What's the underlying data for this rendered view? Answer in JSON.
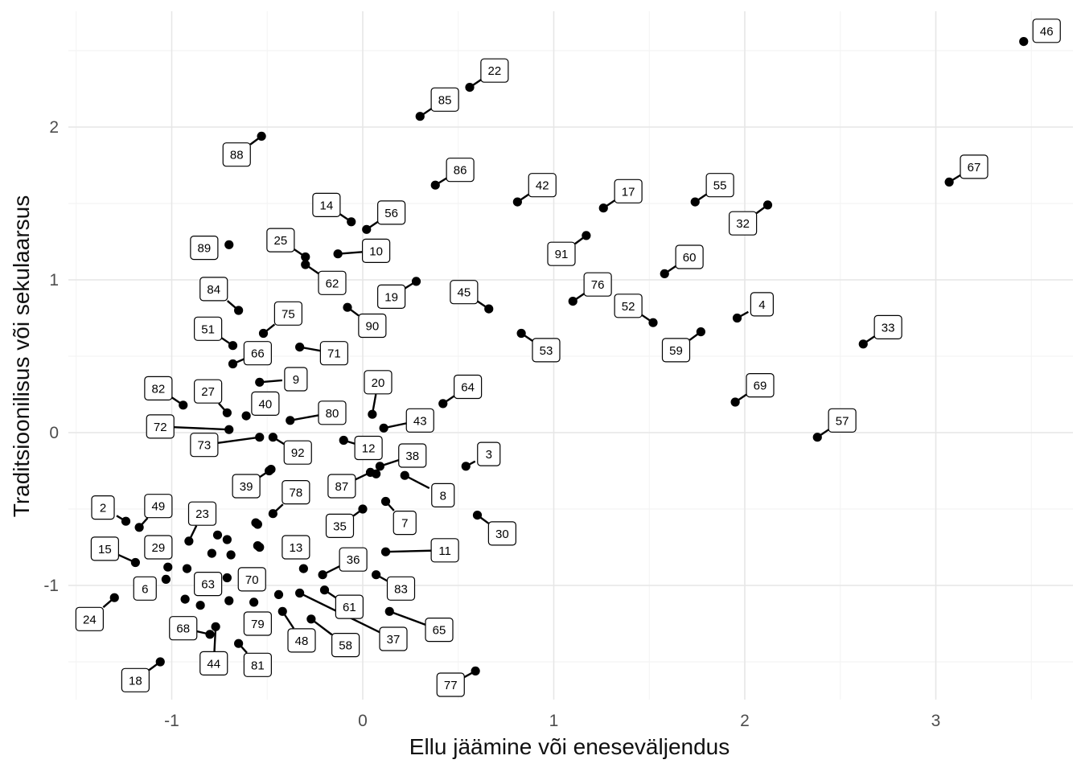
{
  "chart_data": {
    "type": "scatter",
    "title": "",
    "xlabel": "Ellu jäämine või eneseväljendus",
    "ylabel": "Traditsioonilisus või sekulaarsus",
    "xlim": [
      -1.5,
      3.7
    ],
    "ylim": [
      -1.75,
      2.7
    ],
    "xticks": [
      -1,
      0,
      1,
      2,
      3
    ],
    "yticks": [
      -1,
      0,
      1,
      2
    ],
    "grid": true,
    "points": [
      {
        "label": "46",
        "x": 3.46,
        "y": 2.56,
        "lx": 3.58,
        "ly": 2.63
      },
      {
        "label": "22",
        "x": 0.56,
        "y": 2.26,
        "lx": 0.69,
        "ly": 2.37
      },
      {
        "label": "85",
        "x": 0.3,
        "y": 2.07,
        "lx": 0.43,
        "ly": 2.18
      },
      {
        "label": "88",
        "x": -0.53,
        "y": 1.94,
        "lx": -0.66,
        "ly": 1.82
      },
      {
        "label": "67",
        "x": 3.07,
        "y": 1.64,
        "lx": 3.2,
        "ly": 1.74
      },
      {
        "label": "86",
        "x": 0.38,
        "y": 1.62,
        "lx": 0.51,
        "ly": 1.72
      },
      {
        "label": "42",
        "x": 0.81,
        "y": 1.51,
        "lx": 0.94,
        "ly": 1.62
      },
      {
        "label": "17",
        "x": 1.26,
        "y": 1.47,
        "lx": 1.39,
        "ly": 1.58
      },
      {
        "label": "55",
        "x": 1.74,
        "y": 1.51,
        "lx": 1.87,
        "ly": 1.62
      },
      {
        "label": "32",
        "x": 2.12,
        "y": 1.49,
        "lx": 1.99,
        "ly": 1.37
      },
      {
        "label": "14",
        "x": -0.06,
        "y": 1.38,
        "lx": -0.19,
        "ly": 1.49
      },
      {
        "label": "56",
        "x": 0.02,
        "y": 1.33,
        "lx": 0.15,
        "ly": 1.44
      },
      {
        "label": "91",
        "x": 1.17,
        "y": 1.29,
        "lx": 1.04,
        "ly": 1.17
      },
      {
        "label": "89",
        "x": -0.7,
        "y": 1.23,
        "lx": -0.83,
        "ly": 1.21
      },
      {
        "label": "25",
        "x": -0.3,
        "y": 1.15,
        "lx": -0.43,
        "ly": 1.26
      },
      {
        "label": "10",
        "x": -0.13,
        "y": 1.17,
        "lx": 0.07,
        "ly": 1.19
      },
      {
        "label": "62",
        "x": -0.3,
        "y": 1.1,
        "lx": -0.16,
        "ly": 0.98
      },
      {
        "label": "60",
        "x": 1.58,
        "y": 1.04,
        "lx": 1.71,
        "ly": 1.15
      },
      {
        "label": "76",
        "x": 1.1,
        "y": 0.86,
        "lx": 1.23,
        "ly": 0.97
      },
      {
        "label": "84",
        "x": -0.65,
        "y": 0.8,
        "lx": -0.78,
        "ly": 0.94
      },
      {
        "label": "19",
        "x": 0.28,
        "y": 0.99,
        "lx": 0.15,
        "ly": 0.89
      },
      {
        "label": "45",
        "x": 0.66,
        "y": 0.81,
        "lx": 0.53,
        "ly": 0.92
      },
      {
        "label": "52",
        "x": 1.52,
        "y": 0.72,
        "lx": 1.39,
        "ly": 0.83
      },
      {
        "label": "4",
        "x": 1.96,
        "y": 0.75,
        "lx": 2.09,
        "ly": 0.84
      },
      {
        "label": "75",
        "x": -0.52,
        "y": 0.65,
        "lx": -0.39,
        "ly": 0.78
      },
      {
        "label": "90",
        "x": -0.08,
        "y": 0.82,
        "lx": 0.05,
        "ly": 0.7
      },
      {
        "label": "51",
        "x": -0.68,
        "y": 0.57,
        "lx": -0.81,
        "ly": 0.68
      },
      {
        "label": "33",
        "x": 2.62,
        "y": 0.58,
        "lx": 2.75,
        "ly": 0.69
      },
      {
        "label": "53",
        "x": 0.83,
        "y": 0.65,
        "lx": 0.96,
        "ly": 0.54
      },
      {
        "label": "59",
        "x": 1.77,
        "y": 0.66,
        "lx": 1.64,
        "ly": 0.54
      },
      {
        "label": "66",
        "x": -0.68,
        "y": 0.45,
        "lx": -0.55,
        "ly": 0.52
      },
      {
        "label": "71",
        "x": -0.33,
        "y": 0.56,
        "lx": -0.15,
        "ly": 0.52
      },
      {
        "label": "9",
        "x": -0.54,
        "y": 0.33,
        "lx": -0.35,
        "ly": 0.35
      },
      {
        "label": "20",
        "x": 0.05,
        "y": 0.12,
        "lx": 0.08,
        "ly": 0.33
      },
      {
        "label": "64",
        "x": 0.42,
        "y": 0.19,
        "lx": 0.55,
        "ly": 0.3
      },
      {
        "label": "69",
        "x": 1.95,
        "y": 0.2,
        "lx": 2.08,
        "ly": 0.31
      },
      {
        "label": "82",
        "x": -0.94,
        "y": 0.18,
        "lx": -1.07,
        "ly": 0.29
      },
      {
        "label": "27",
        "x": -0.71,
        "y": 0.13,
        "lx": -0.81,
        "ly": 0.27
      },
      {
        "label": "40",
        "x": -0.61,
        "y": 0.11,
        "lx": -0.51,
        "ly": 0.19
      },
      {
        "label": "80",
        "x": -0.38,
        "y": 0.08,
        "lx": -0.16,
        "ly": 0.13
      },
      {
        "label": "43",
        "x": 0.11,
        "y": 0.03,
        "lx": 0.3,
        "ly": 0.08
      },
      {
        "label": "72",
        "x": -0.7,
        "y": 0.02,
        "lx": -1.06,
        "ly": 0.04
      },
      {
        "label": "57",
        "x": 2.38,
        "y": -0.03,
        "lx": 2.51,
        "ly": 0.08
      },
      {
        "label": "73",
        "x": -0.54,
        "y": -0.03,
        "lx": -0.83,
        "ly": -0.08
      },
      {
        "label": "92",
        "x": -0.47,
        "y": -0.03,
        "lx": -0.34,
        "ly": -0.13
      },
      {
        "label": "12",
        "x": -0.1,
        "y": -0.05,
        "lx": 0.03,
        "ly": -0.1
      },
      {
        "label": "3",
        "x": 0.54,
        "y": -0.22,
        "lx": 0.66,
        "ly": -0.14
      },
      {
        "label": "38",
        "x": 0.09,
        "y": -0.22,
        "lx": 0.26,
        "ly": -0.15
      },
      {
        "label": "87",
        "x": 0.04,
        "y": -0.26,
        "lx": -0.11,
        "ly": -0.35
      },
      {
        "label": "39",
        "x": -0.49,
        "y": -0.25,
        "lx": -0.61,
        "ly": -0.35
      },
      {
        "label": "8",
        "x": 0.22,
        "y": -0.28,
        "lx": 0.42,
        "ly": -0.41
      },
      {
        "label": "78",
        "x": -0.47,
        "y": -0.53,
        "lx": -0.35,
        "ly": -0.39
      },
      {
        "label": "7",
        "x": 0.12,
        "y": -0.45,
        "lx": 0.22,
        "ly": -0.59
      },
      {
        "label": "35",
        "x": 0.0,
        "y": -0.5,
        "lx": -0.12,
        "ly": -0.61
      },
      {
        "label": "30",
        "x": 0.6,
        "y": -0.54,
        "lx": 0.73,
        "ly": -0.66
      },
      {
        "label": "2",
        "x": -1.24,
        "y": -0.58,
        "lx": -1.36,
        "ly": -0.49
      },
      {
        "label": "49",
        "x": -1.17,
        "y": -0.62,
        "lx": -1.07,
        "ly": -0.48
      },
      {
        "label": "23",
        "x": -0.91,
        "y": -0.71,
        "lx": -0.84,
        "ly": -0.53
      },
      {
        "label": "15",
        "x": -1.19,
        "y": -0.85,
        "lx": -1.35,
        "ly": -0.76
      },
      {
        "label": "29",
        "x": -1.02,
        "y": -0.88,
        "lx": -1.07,
        "ly": -0.75
      },
      {
        "label": "13",
        "x": -0.31,
        "y": -0.89,
        "lx": -0.35,
        "ly": -0.75
      },
      {
        "label": "11",
        "x": 0.12,
        "y": -0.78,
        "lx": 0.43,
        "ly": -0.77
      },
      {
        "label": "36",
        "x": -0.21,
        "y": -0.93,
        "lx": -0.05,
        "ly": -0.83
      },
      {
        "label": "6",
        "x": -1.03,
        "y": -0.96,
        "lx": -1.14,
        "ly": -1.02
      },
      {
        "label": "63",
        "x": -0.8,
        "y": -0.98,
        "lx": -0.81,
        "ly": -0.99
      },
      {
        "label": "70",
        "x": -0.55,
        "y": -0.96,
        "lx": -0.58,
        "ly": -0.96
      },
      {
        "label": "83",
        "x": 0.07,
        "y": -0.93,
        "lx": 0.2,
        "ly": -1.02
      },
      {
        "label": "24",
        "x": -1.3,
        "y": -1.08,
        "lx": -1.43,
        "ly": -1.22
      },
      {
        "label": "61",
        "x": -0.2,
        "y": -1.03,
        "lx": -0.07,
        "ly": -1.14
      },
      {
        "label": "65",
        "x": 0.14,
        "y": -1.17,
        "lx": 0.4,
        "ly": -1.29
      },
      {
        "label": "68",
        "x": -0.8,
        "y": -1.32,
        "lx": -0.94,
        "ly": -1.28
      },
      {
        "label": "79",
        "x": -0.57,
        "y": -1.11,
        "lx": -0.55,
        "ly": -1.25
      },
      {
        "label": "48",
        "x": -0.42,
        "y": -1.17,
        "lx": -0.32,
        "ly": -1.36
      },
      {
        "label": "58",
        "x": -0.27,
        "y": -1.22,
        "lx": -0.09,
        "ly": -1.39
      },
      {
        "label": "37",
        "x": -0.33,
        "y": -1.05,
        "lx": 0.16,
        "ly": -1.35
      },
      {
        "label": "44",
        "x": -0.77,
        "y": -1.27,
        "lx": -0.78,
        "ly": -1.51
      },
      {
        "label": "81",
        "x": -0.65,
        "y": -1.38,
        "lx": -0.55,
        "ly": -1.52
      },
      {
        "label": "18",
        "x": -1.06,
        "y": -1.5,
        "lx": -1.19,
        "ly": -1.62
      },
      {
        "label": "77",
        "x": 0.59,
        "y": -1.56,
        "lx": 0.46,
        "ly": -1.65
      },
      {
        "x": -0.48,
        "y": -0.24
      },
      {
        "x": -0.56,
        "y": -0.59
      },
      {
        "x": -0.55,
        "y": -0.6
      },
      {
        "x": -0.55,
        "y": -0.74
      },
      {
        "x": -0.54,
        "y": -0.75
      },
      {
        "x": -0.76,
        "y": -0.67
      },
      {
        "x": -0.71,
        "y": -0.7
      },
      {
        "x": -0.69,
        "y": -0.8
      },
      {
        "x": -0.79,
        "y": -0.79
      },
      {
        "x": -0.92,
        "y": -0.89
      },
      {
        "x": -0.93,
        "y": -1.09
      },
      {
        "x": -0.85,
        "y": -1.13
      },
      {
        "x": -0.7,
        "y": -1.1
      },
      {
        "x": -0.71,
        "y": -0.95
      },
      {
        "x": -0.44,
        "y": -1.06
      },
      {
        "x": 0.07,
        "y": -0.27
      },
      {
        "x": -0.07,
        "y": -0.82
      }
    ]
  }
}
